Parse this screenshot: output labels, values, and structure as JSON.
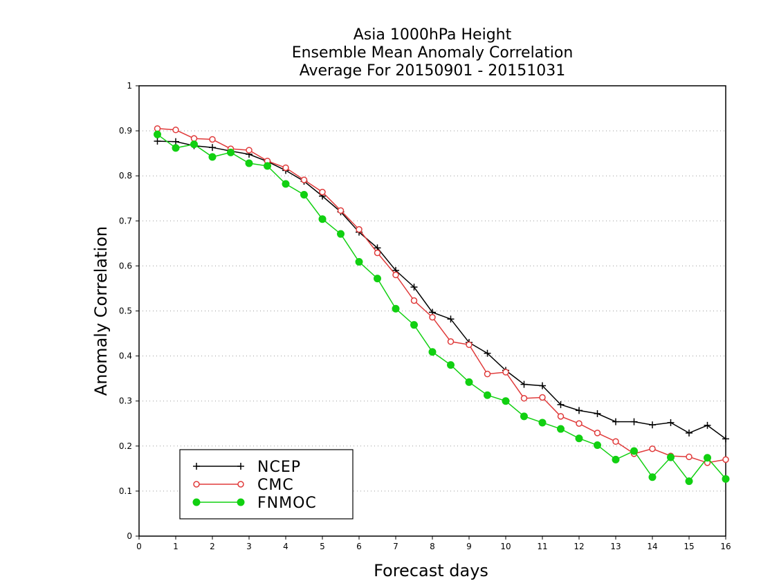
{
  "chart_data": {
    "type": "line",
    "title": [
      "Asia 1000hPa Height",
      "Ensemble Mean Anomaly Correlation",
      "Average For 20150901 - 20151031"
    ],
    "xlabel": "Forecast days",
    "ylabel": "Anomaly Correlation",
    "xlim": [
      0,
      16
    ],
    "ylim": [
      0,
      1
    ],
    "xticks": [
      "0",
      "1",
      "2",
      "3",
      "4",
      "5",
      "6",
      "7",
      "8",
      "9",
      "10",
      "11",
      "12",
      "13",
      "14",
      "15",
      "16"
    ],
    "yticks": [
      "0",
      "0.1",
      "0.2",
      "0.3",
      "0.4",
      "0.5",
      "0.6",
      "0.7",
      "0.8",
      "0.9",
      "1"
    ],
    "grid": "horizontal dotted",
    "legend_position": "bottom-left",
    "x": [
      0.5,
      1,
      1.5,
      2,
      2.5,
      3,
      3.5,
      4,
      4.5,
      5,
      5.5,
      6,
      6.5,
      7,
      7.5,
      8,
      8.5,
      9,
      9.5,
      10,
      10.5,
      11,
      11.5,
      12,
      12.5,
      13,
      13.5,
      14,
      14.5,
      15,
      15.5,
      16
    ],
    "series": [
      {
        "name": "NCEP",
        "color": "#000000",
        "marker": "plus",
        "values": [
          0.877,
          0.876,
          0.867,
          0.863,
          0.855,
          0.848,
          0.832,
          0.812,
          0.788,
          0.755,
          0.72,
          0.675,
          0.64,
          0.59,
          0.553,
          0.497,
          0.482,
          0.43,
          0.406,
          0.368,
          0.337,
          0.334,
          0.292,
          0.279,
          0.272,
          0.254,
          0.254,
          0.247,
          0.252,
          0.229,
          0.246,
          0.216
        ]
      },
      {
        "name": "CMC",
        "color": "#e03a3a",
        "marker": "open-circle",
        "values": [
          0.905,
          0.902,
          0.883,
          0.881,
          0.86,
          0.857,
          0.833,
          0.818,
          0.791,
          0.764,
          0.723,
          0.681,
          0.629,
          0.58,
          0.523,
          0.486,
          0.432,
          0.425,
          0.36,
          0.364,
          0.306,
          0.308,
          0.266,
          0.25,
          0.229,
          0.21,
          0.183,
          0.194,
          0.178,
          0.176,
          0.163,
          0.17
        ]
      },
      {
        "name": "FNMOC",
        "color": "#11d011",
        "marker": "filled-circle",
        "values": [
          0.892,
          0.862,
          0.87,
          0.842,
          0.852,
          0.828,
          0.822,
          0.782,
          0.758,
          0.704,
          0.671,
          0.609,
          0.572,
          0.505,
          0.469,
          0.409,
          0.38,
          0.342,
          0.313,
          0.3,
          0.266,
          0.252,
          0.238,
          0.217,
          0.202,
          0.17,
          0.189,
          0.131,
          0.175,
          0.122,
          0.174,
          0.127
        ]
      }
    ]
  }
}
